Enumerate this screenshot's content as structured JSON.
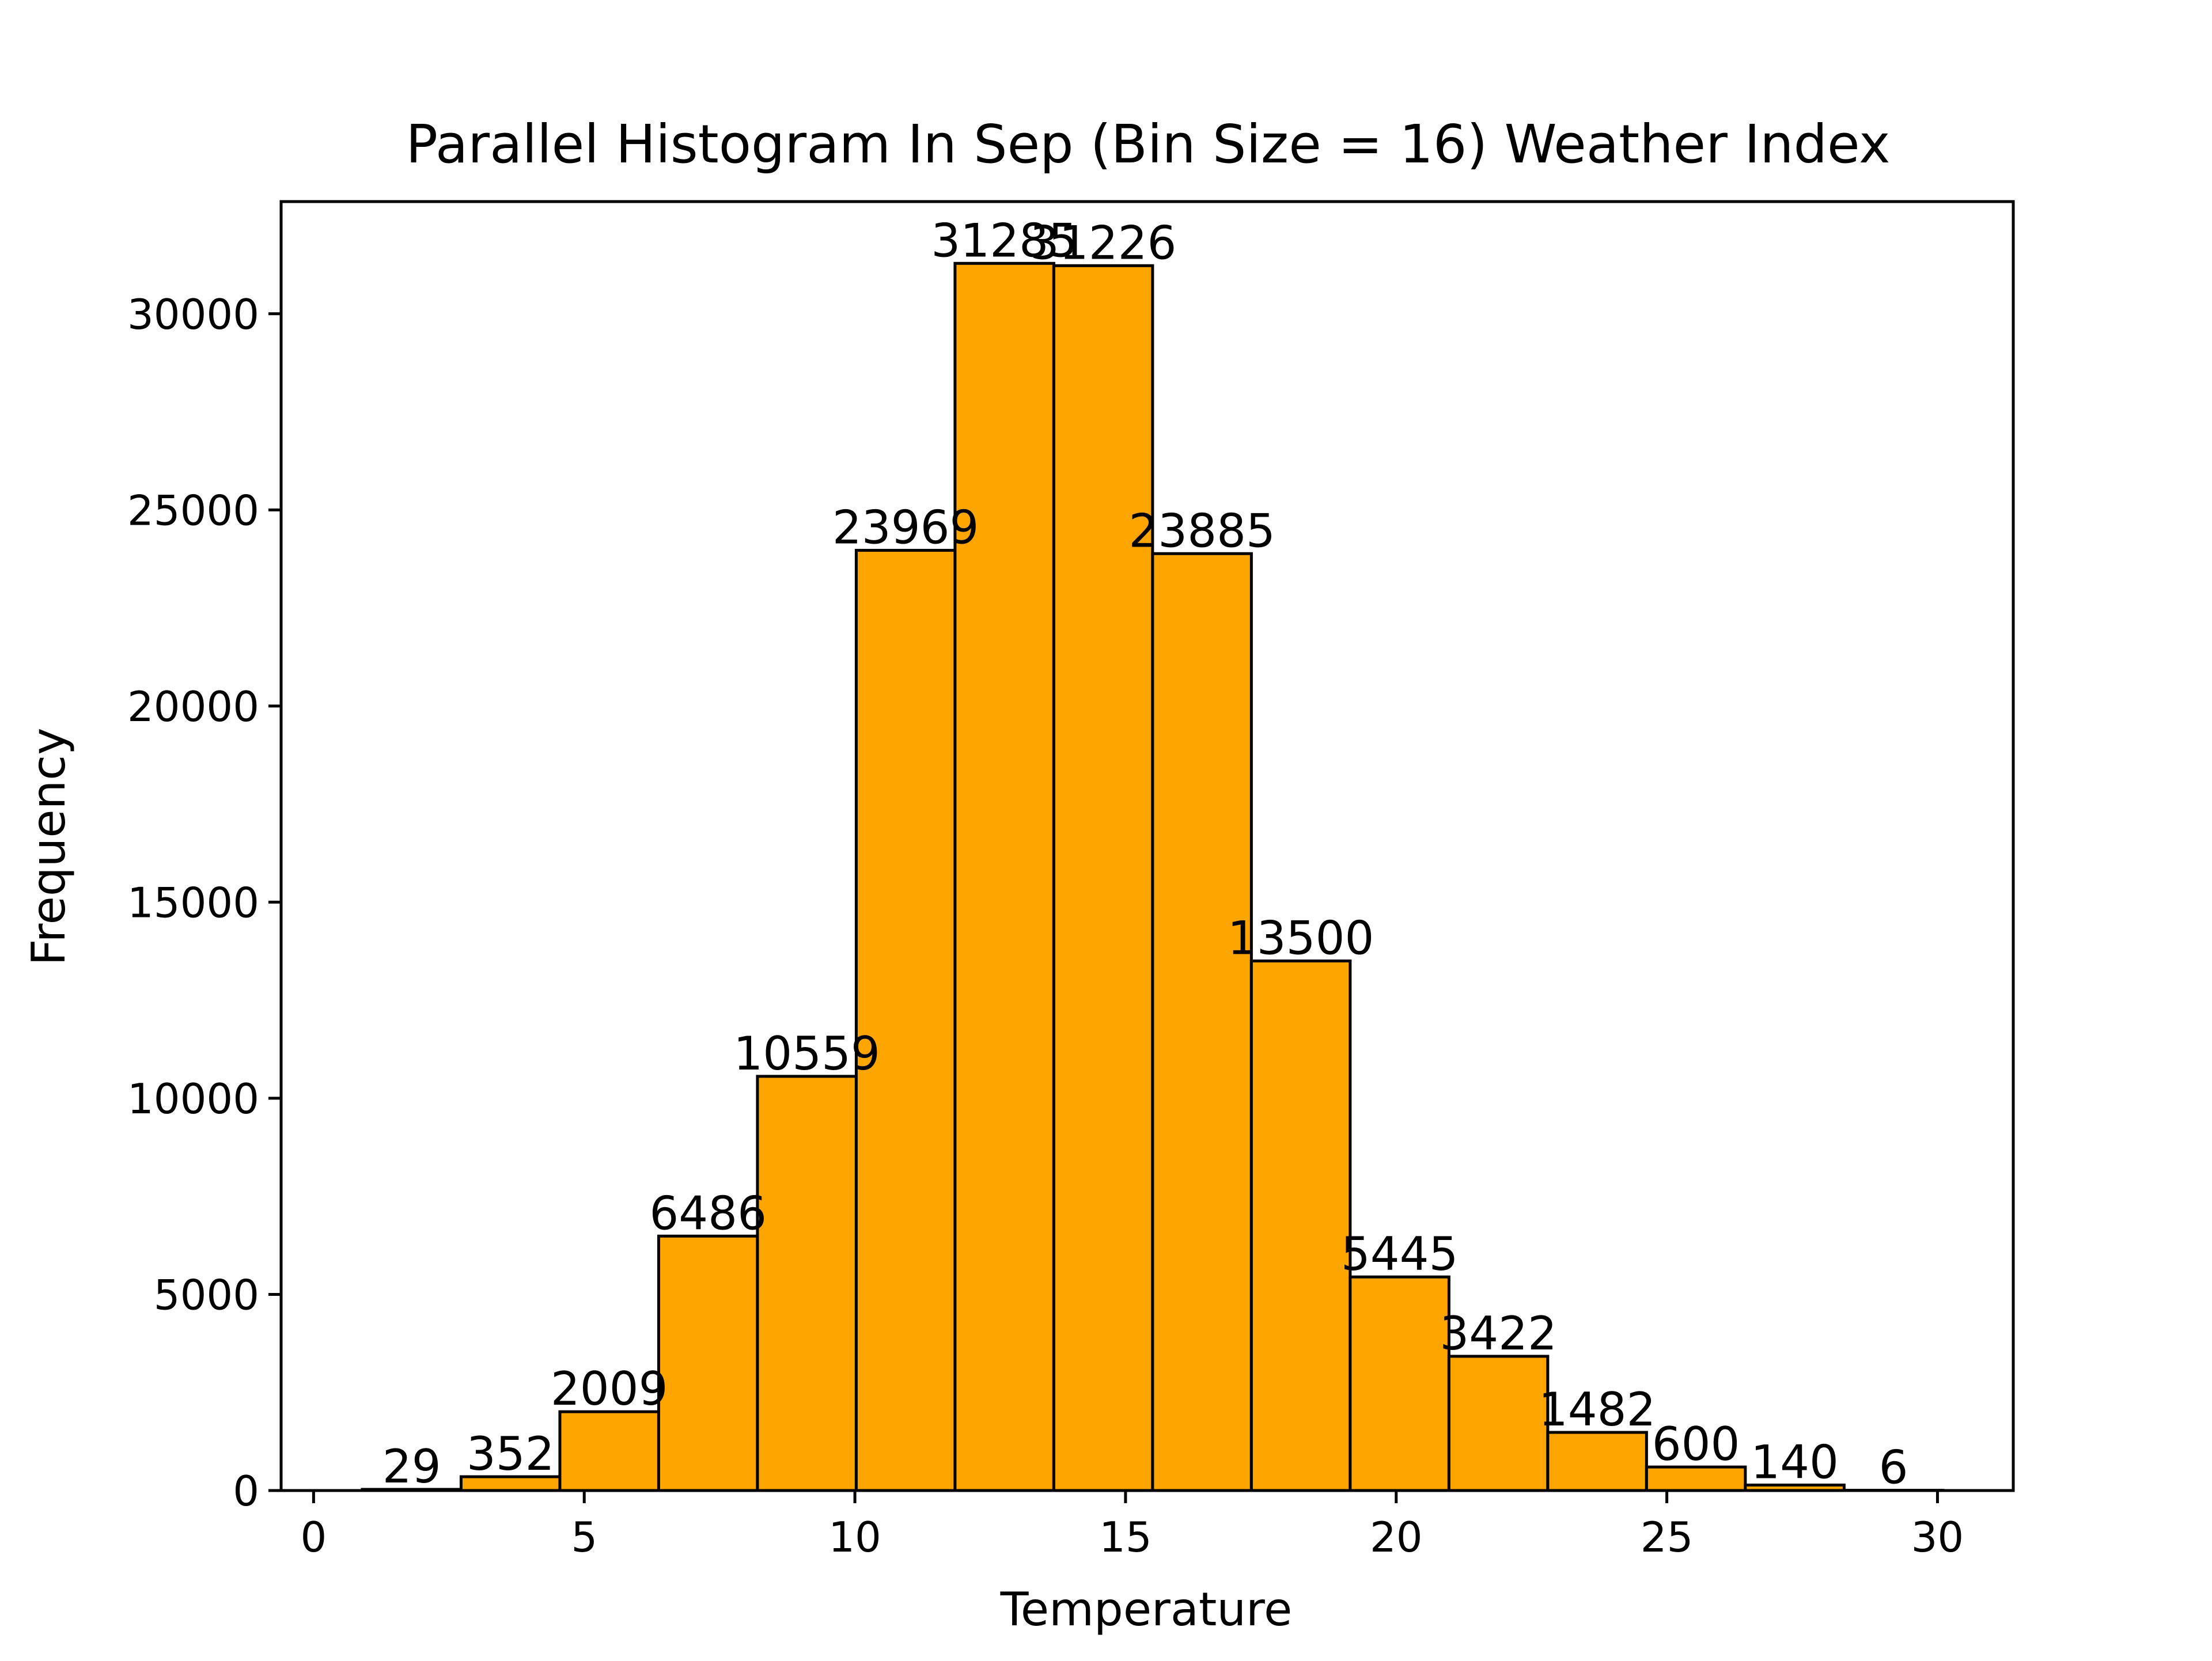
{
  "chart_data": {
    "type": "bar",
    "title": "Parallel Histogram In Sep (Bin Size = 16) Weather Index",
    "xlabel": "Temperature",
    "ylabel": "Frequency",
    "xlim": [
      -0.6,
      31.4
    ],
    "ylim": [
      0,
      32860
    ],
    "x_ticks": [
      0,
      5,
      10,
      15,
      20,
      25,
      30
    ],
    "y_ticks": [
      0,
      5000,
      10000,
      15000,
      20000,
      25000,
      30000
    ],
    "bin_edges": [
      0.9,
      2.725,
      4.55,
      6.375,
      8.2,
      10.025,
      11.85,
      13.675,
      15.5,
      17.325,
      19.15,
      20.975,
      22.8,
      24.625,
      26.45,
      28.275,
      30.1
    ],
    "values": [
      29,
      352,
      2009,
      6486,
      10559,
      23969,
      31285,
      31226,
      23885,
      13500,
      5445,
      3422,
      1482,
      600,
      140,
      6
    ],
    "bar_color": "#ffa500",
    "edge_color": "#000000",
    "grid": false,
    "legend": "none"
  }
}
